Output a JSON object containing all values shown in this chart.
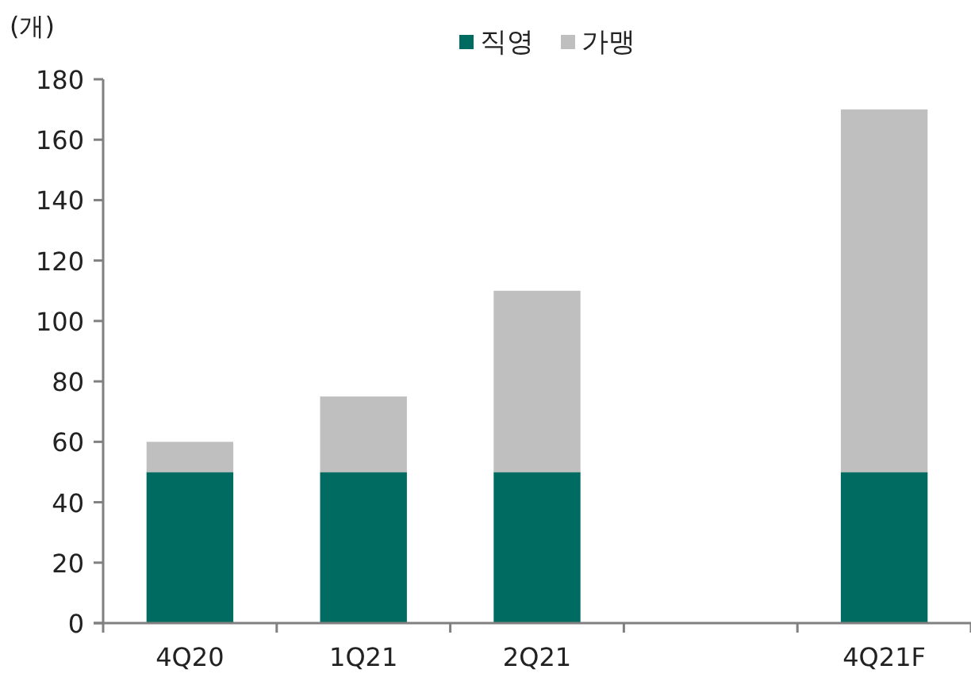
{
  "chart_data": {
    "type": "bar",
    "stacked": true,
    "ylabel": "(개)",
    "categories": [
      "4Q20",
      "1Q21",
      "2Q21",
      null,
      "4Q21F"
    ],
    "series": [
      {
        "name": "직영",
        "color": "#006b60",
        "values": [
          50,
          50,
          50,
          null,
          50
        ]
      },
      {
        "name": "가맹",
        "color": "#bfbfbf",
        "values": [
          10,
          25,
          60,
          null,
          120
        ]
      }
    ],
    "ylim": [
      0,
      180
    ],
    "yticks": [
      0,
      20,
      40,
      60,
      80,
      100,
      120,
      140,
      160,
      180
    ],
    "legend": "top",
    "grid": false
  }
}
